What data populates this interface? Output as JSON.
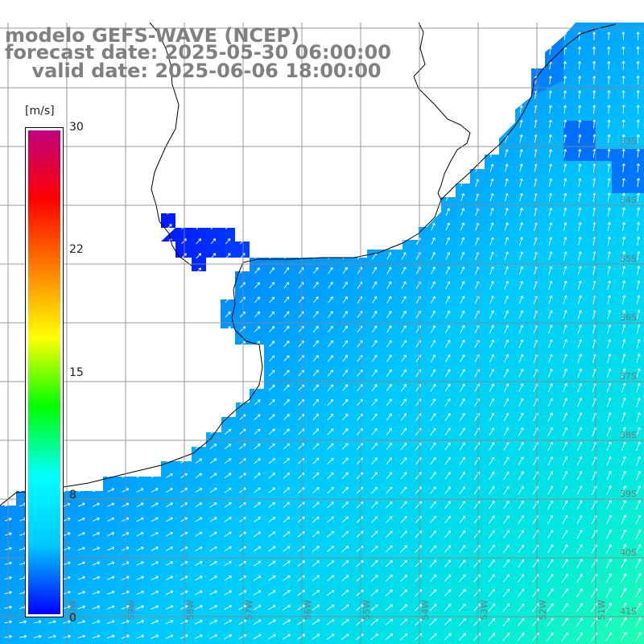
{
  "title": {
    "line1": "modelo GEFS-WAVE (NCEP)",
    "line2": "forecast date: 2025-05-30 06:00:00",
    "line3": "    valid date: 2025-06-06 18:00:00",
    "color": "#808080"
  },
  "colorbar": {
    "unit": "[m/s]",
    "ticks": [
      "30",
      "22",
      "15",
      "8",
      "0"
    ],
    "tick_values": [
      30,
      22,
      15,
      8,
      0
    ],
    "range": [
      0,
      30
    ],
    "stops": [
      "#0000ff",
      "#00c8ff",
      "#00ffff",
      "#00ff00",
      "#ffff00",
      "#ff8000",
      "#ff0000",
      "#c00080"
    ]
  },
  "map": {
    "lat_labels": [
      "33S",
      "34S",
      "35S",
      "36S",
      "37S",
      "38S",
      "39S",
      "40S",
      "41S"
    ],
    "lon_labels": [
      "60W",
      "59W",
      "58W",
      "57W",
      "56W",
      "55W",
      "54W",
      "53W",
      "52W",
      "51W"
    ],
    "land_color": "#ffffff",
    "grid_color": "#888888",
    "coast_color": "#000000",
    "arrow_color": "#ffffff",
    "field_description": "wind speed and direction over the South Atlantic off Uruguay and Buenos Aires"
  }
}
